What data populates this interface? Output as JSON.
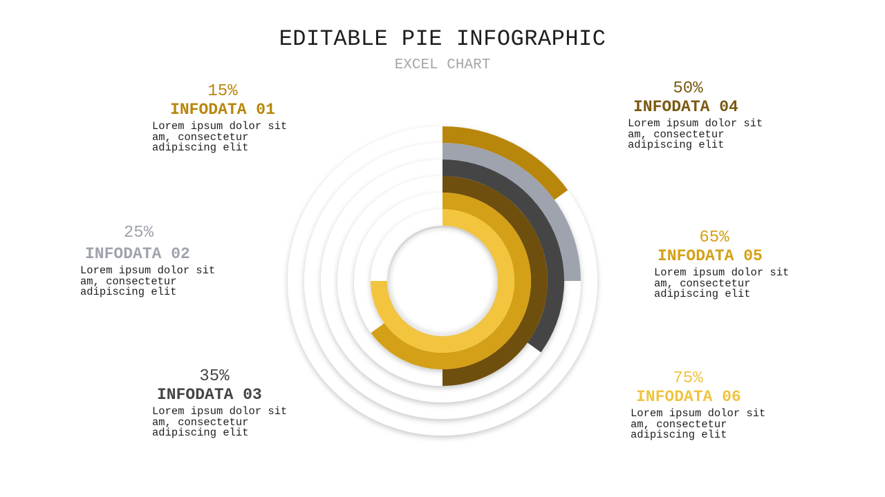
{
  "title": "EDITABLE PIE INFOGRAPHIC",
  "subtitle": "EXCEL CHART",
  "description": "Lorem ipsum dolor sit am, consectetur adipiscing elit",
  "colors": {
    "gold": "#b8860b",
    "gray": "#9ea3ad",
    "charcoal": "#454545",
    "brown": "#6f4f0e",
    "amber": "#d4a017",
    "yellow": "#f3c53e",
    "track": "#ffffff"
  },
  "items": [
    {
      "pct": "15%",
      "name": "INFODATA 01",
      "color": "#b8860b"
    },
    {
      "pct": "25%",
      "name": "INFODATA 02",
      "color": "#9ea3ad"
    },
    {
      "pct": "35%",
      "name": "INFODATA 03",
      "color": "#454545"
    },
    {
      "pct": "50%",
      "name": "INFODATA 04",
      "color": "#7a5a12"
    },
    {
      "pct": "65%",
      "name": "INFODATA 05",
      "color": "#d4a017"
    },
    {
      "pct": "75%",
      "name": "INFODATA 06",
      "color": "#f0c440"
    }
  ],
  "chart_data": {
    "type": "pie",
    "categories": [
      "INFODATA 01",
      "INFODATA 02",
      "INFODATA 03",
      "INFODATA 04",
      "INFODATA 05",
      "INFODATA 06"
    ],
    "values": [
      15,
      25,
      35,
      50,
      65,
      75
    ],
    "unit": "%"
  }
}
